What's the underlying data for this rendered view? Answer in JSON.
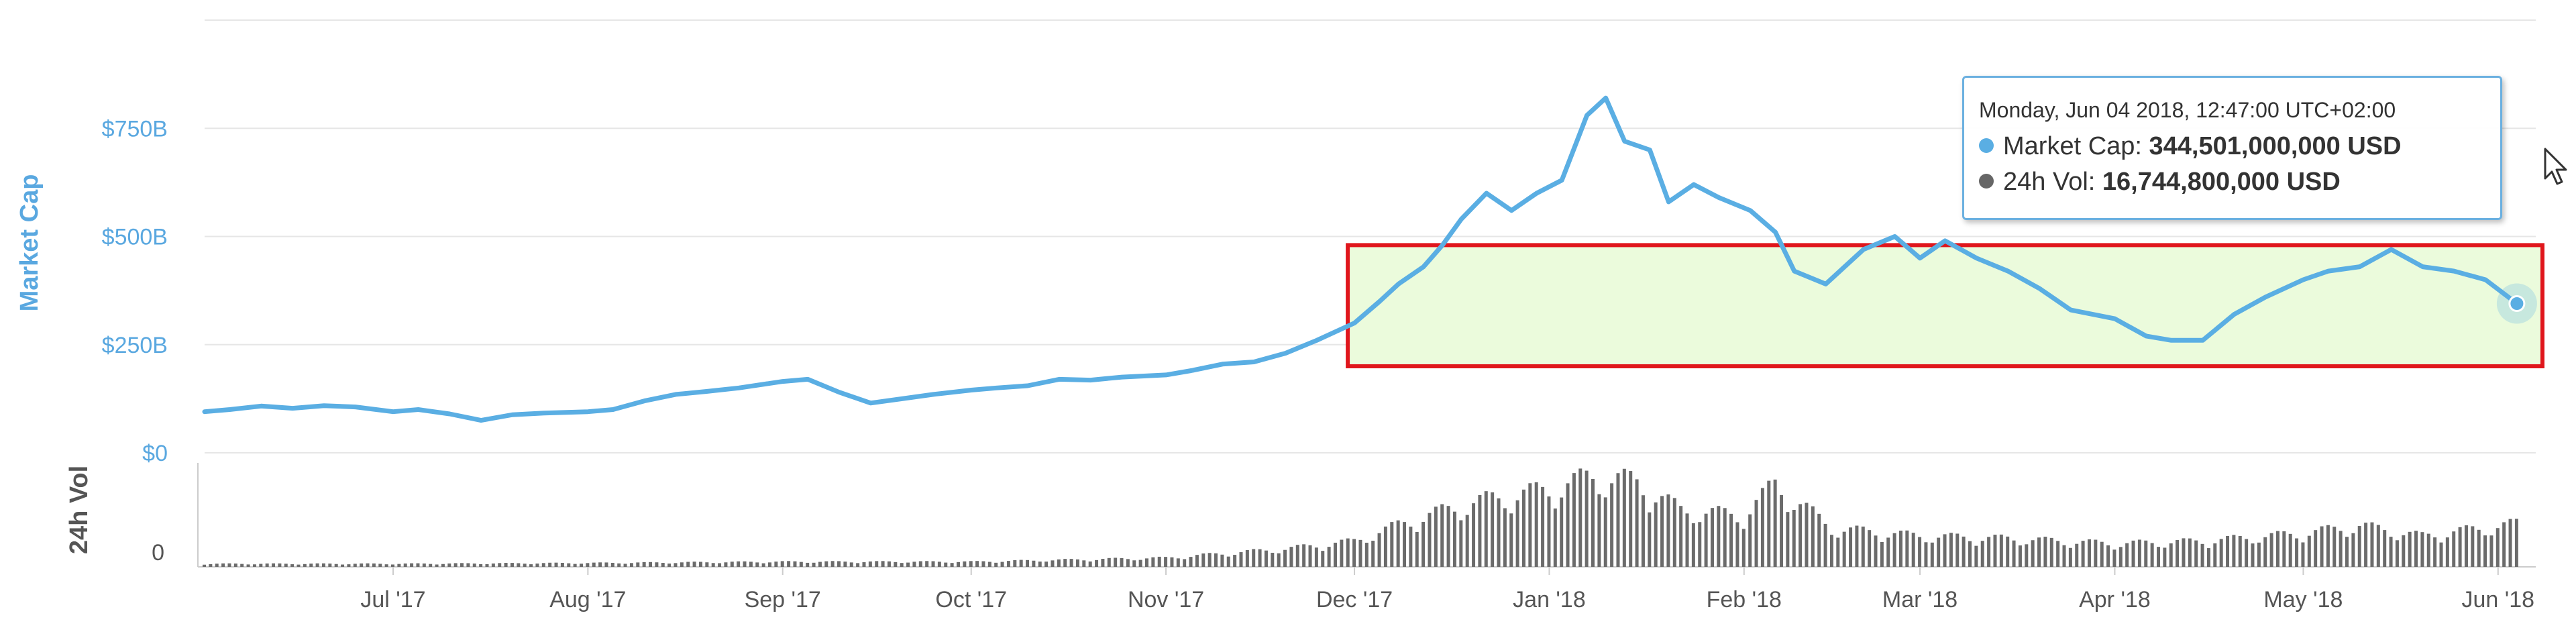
{
  "chart_data": {
    "type": "line",
    "x_ticks": [
      "Jul '17",
      "Aug '17",
      "Sep '17",
      "Oct '17",
      "Nov '17",
      "Dec '17",
      "Jan '18",
      "Feb '18",
      "Mar '18",
      "Apr '18",
      "May '18",
      "Jun '18"
    ],
    "y_ticks": [
      "$0",
      "$250B",
      "$500B",
      "$750B"
    ],
    "ylim": [
      0,
      1000
    ],
    "ylabel": "Market Cap",
    "vol_ylabel": "24h Vol",
    "vol_ticks": [
      "0"
    ],
    "series": [
      {
        "name": "Market Cap",
        "unit": "B USD",
        "color": "#5aaee3",
        "x": [
          "2017-06-01",
          "2017-06-05",
          "2017-06-10",
          "2017-06-15",
          "2017-06-20",
          "2017-06-25",
          "2017-07-01",
          "2017-07-05",
          "2017-07-10",
          "2017-07-15",
          "2017-07-20",
          "2017-07-25",
          "2017-08-01",
          "2017-08-05",
          "2017-08-10",
          "2017-08-15",
          "2017-08-20",
          "2017-08-25",
          "2017-09-01",
          "2017-09-05",
          "2017-09-10",
          "2017-09-15",
          "2017-09-20",
          "2017-09-25",
          "2017-10-01",
          "2017-10-05",
          "2017-10-10",
          "2017-10-15",
          "2017-10-20",
          "2017-10-25",
          "2017-11-01",
          "2017-11-05",
          "2017-11-10",
          "2017-11-15",
          "2017-11-20",
          "2017-11-25",
          "2017-12-01",
          "2017-12-05",
          "2017-12-08",
          "2017-12-12",
          "2017-12-15",
          "2017-12-18",
          "2017-12-22",
          "2017-12-26",
          "2017-12-30",
          "2018-01-03",
          "2018-01-07",
          "2018-01-10",
          "2018-01-13",
          "2018-01-17",
          "2018-01-20",
          "2018-01-24",
          "2018-01-28",
          "2018-02-02",
          "2018-02-06",
          "2018-02-09",
          "2018-02-14",
          "2018-02-20",
          "2018-02-25",
          "2018-03-01",
          "2018-03-05",
          "2018-03-10",
          "2018-03-15",
          "2018-03-20",
          "2018-03-25",
          "2018-04-01",
          "2018-04-06",
          "2018-04-10",
          "2018-04-15",
          "2018-04-20",
          "2018-04-25",
          "2018-05-01",
          "2018-05-05",
          "2018-05-10",
          "2018-05-15",
          "2018-05-20",
          "2018-05-25",
          "2018-05-30",
          "2018-06-04"
        ],
        "values": [
          95,
          100,
          108,
          103,
          109,
          106,
          95,
          100,
          90,
          75,
          88,
          92,
          95,
          100,
          120,
          135,
          142,
          150,
          165,
          170,
          140,
          115,
          125,
          135,
          145,
          150,
          155,
          170,
          168,
          175,
          180,
          190,
          205,
          210,
          230,
          260,
          300,
          350,
          390,
          430,
          480,
          540,
          600,
          560,
          600,
          630,
          780,
          820,
          720,
          700,
          580,
          620,
          590,
          560,
          510,
          420,
          390,
          470,
          500,
          450,
          490,
          450,
          420,
          380,
          330,
          310,
          270,
          260,
          260,
          320,
          360,
          400,
          420,
          430,
          470,
          430,
          420,
          400,
          345
        ]
      },
      {
        "name": "24h Vol",
        "unit": "B USD",
        "color": "#555555",
        "x": [
          "2017-06-01",
          "2017-07-01",
          "2017-08-01",
          "2017-09-01",
          "2017-10-01",
          "2017-11-01",
          "2017-11-20",
          "2017-12-01",
          "2017-12-10",
          "2017-12-20",
          "2018-01-01",
          "2018-01-08",
          "2018-01-15",
          "2018-01-22",
          "2018-02-01",
          "2018-02-06",
          "2018-02-15",
          "2018-03-01",
          "2018-03-15",
          "2018-04-01",
          "2018-04-15",
          "2018-05-01",
          "2018-05-10",
          "2018-05-20",
          "2018-06-04"
        ],
        "values": [
          1.2,
          1.2,
          1.5,
          2.0,
          2.0,
          3.5,
          7,
          10,
          18,
          25,
          30,
          35,
          33,
          22,
          20,
          32,
          15,
          12,
          11,
          9,
          10,
          13,
          16,
          12,
          16.7
        ]
      }
    ],
    "highlight": {
      "x_start": "2017-12-01",
      "x_end": "2018-06-04",
      "ymin": 200,
      "ymax": 480
    },
    "tooltip": {
      "date": "Monday, Jun 04 2018, 12:47:00 UTC+02:00",
      "market_cap_label": "Market Cap: ",
      "market_cap_value": "344,501,000,000 USD",
      "vol_label": "24h Vol: ",
      "vol_value": "16,744,800,000 USD"
    }
  }
}
